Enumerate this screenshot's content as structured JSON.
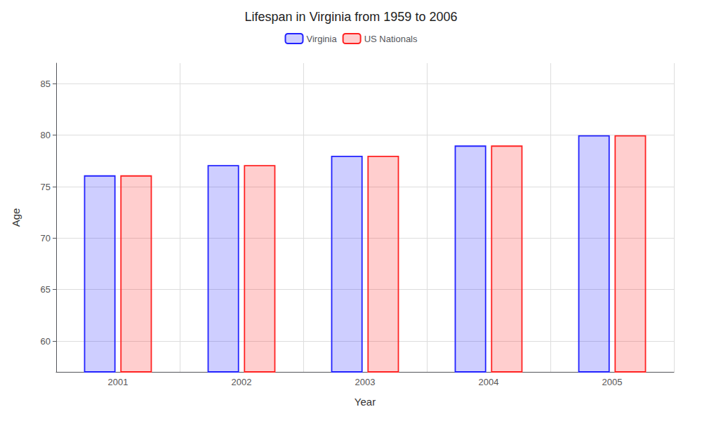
{
  "chart_data": {
    "type": "bar",
    "title": "Lifespan in Virginia from 1959 to 2006",
    "xlabel": "Year",
    "ylabel": "Age",
    "categories": [
      "2001",
      "2002",
      "2003",
      "2004",
      "2005"
    ],
    "series": [
      {
        "name": "Virginia",
        "color": "#2222ff",
        "values": [
          76.1,
          77.1,
          78.0,
          79.0,
          80.0
        ]
      },
      {
        "name": "US Nationals",
        "color": "#ff2222",
        "values": [
          76.1,
          77.1,
          78.0,
          79.0,
          80.0
        ]
      }
    ],
    "ylim": [
      57,
      87
    ],
    "yticks": [
      60,
      65,
      70,
      75,
      80,
      85
    ],
    "grid": true,
    "legend": "top"
  }
}
